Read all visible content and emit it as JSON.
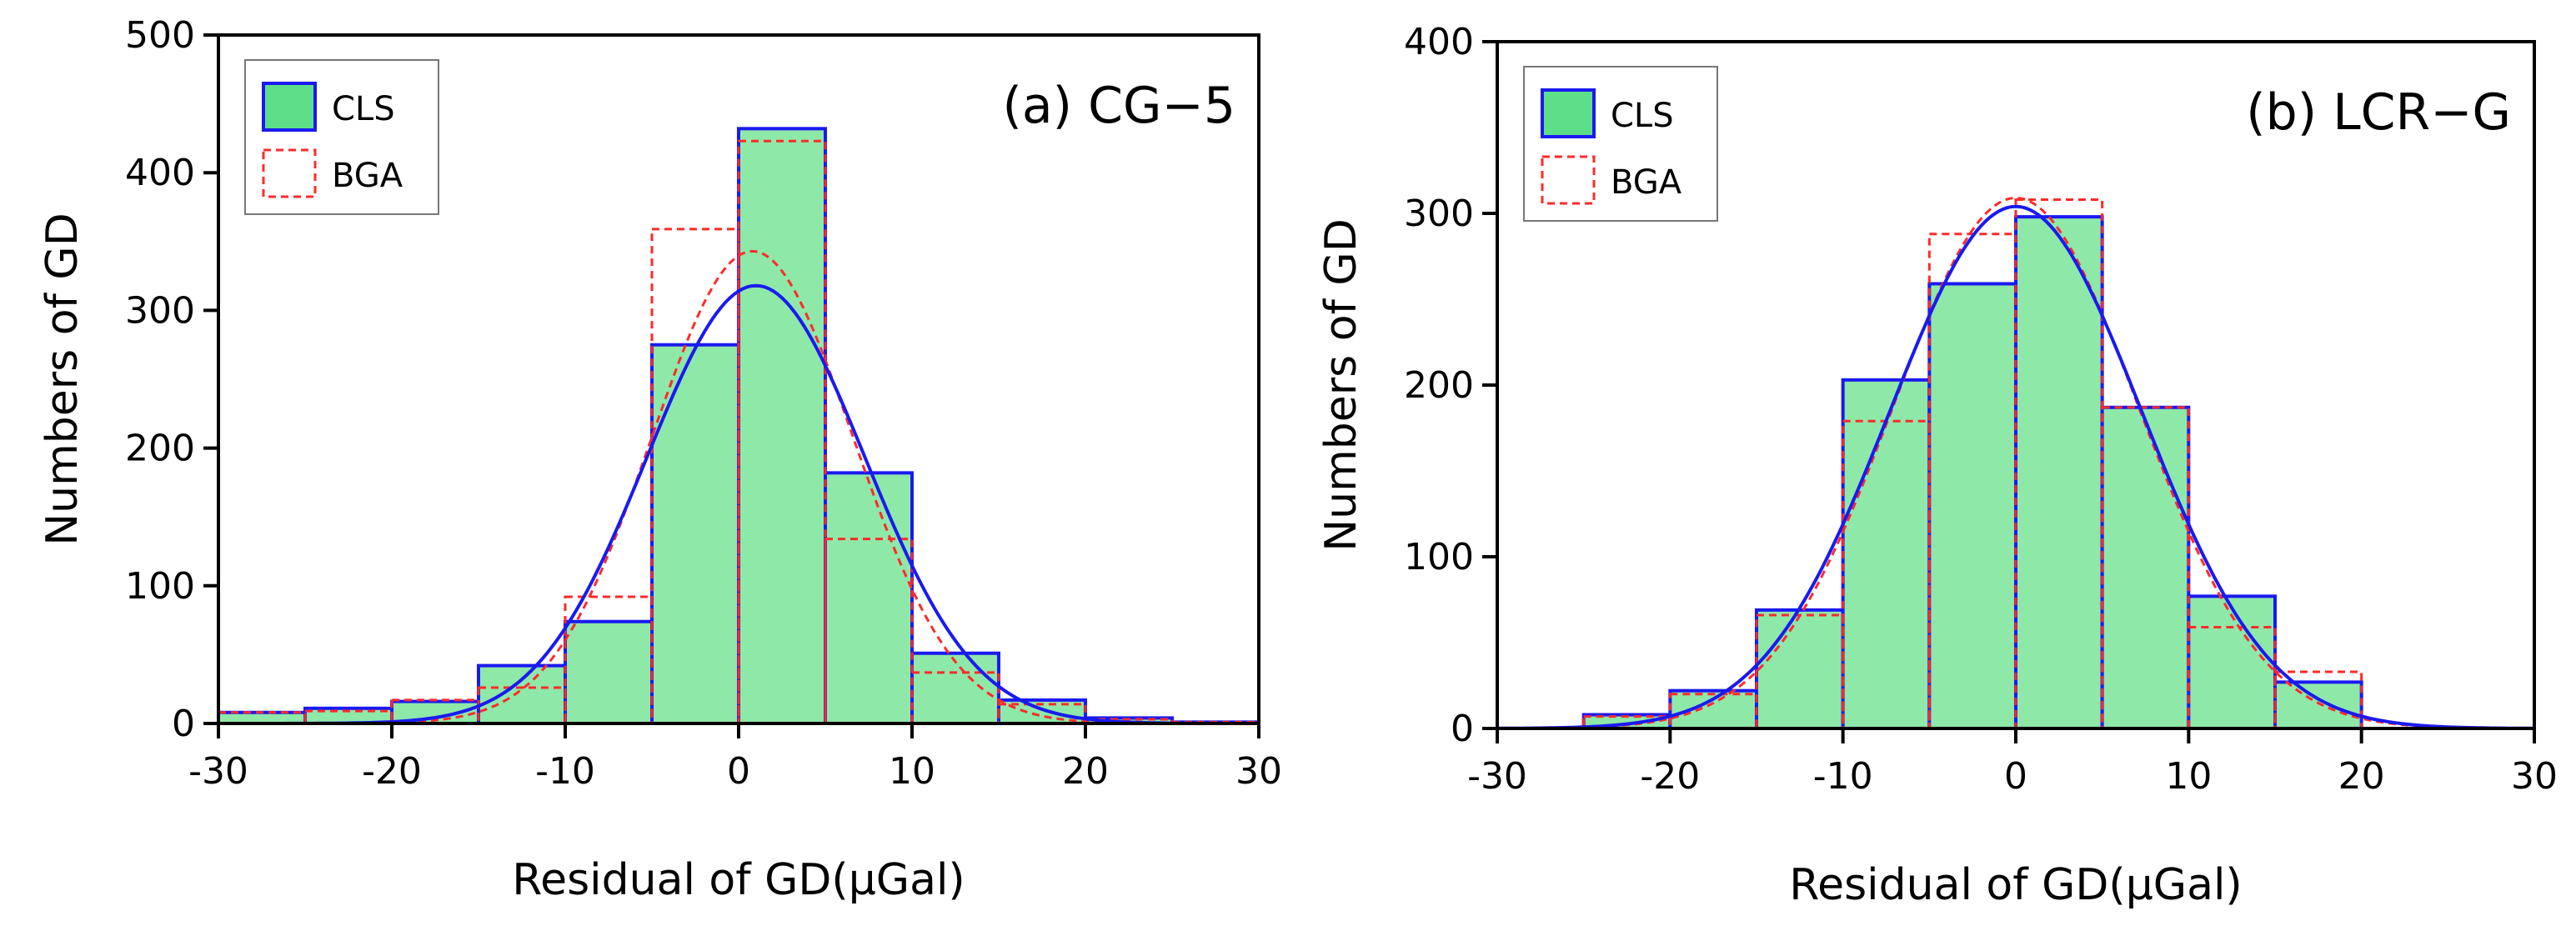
{
  "chart_data": [
    {
      "type": "bar",
      "title": "(a)  CG−5",
      "xlabel": "Residual of GD(μGal)",
      "ylabel": "Numbers of GD",
      "xlim": [
        -30,
        30
      ],
      "ylim": [
        0,
        500
      ],
      "xticks": [
        "-30",
        "-20",
        "-10",
        "0",
        "10",
        "20",
        "30"
      ],
      "yticks": [
        "0",
        "100",
        "200",
        "300",
        "400",
        "500"
      ],
      "bin_edges": [
        -30,
        -25,
        -20,
        -15,
        -10,
        -5,
        0,
        5,
        10,
        15,
        20,
        25,
        30
      ],
      "legend": {
        "position": "top-left",
        "entries": [
          "CLS",
          "BGA"
        ]
      },
      "series": [
        {
          "name": "CLS",
          "values": [
            8,
            11,
            16,
            42,
            74,
            275,
            432,
            182,
            51,
            17,
            4,
            1
          ],
          "fit": {
            "mu": 1,
            "sigma": 6.3,
            "peak": 318
          }
        },
        {
          "name": "BGA",
          "values": [
            8,
            9,
            17,
            26,
            92,
            359,
            423,
            134,
            37,
            14,
            3,
            1
          ],
          "fit": {
            "mu": 0.8,
            "sigma": 5.8,
            "peak": 343
          }
        }
      ]
    },
    {
      "type": "bar",
      "title": "(b)  LCR−G",
      "xlabel": "Residual of GD(μGal)",
      "ylabel": "Numbers of GD",
      "xlim": [
        -30,
        30
      ],
      "ylim": [
        0,
        400
      ],
      "xticks": [
        "-30",
        "-20",
        "-10",
        "0",
        "10",
        "20",
        "30"
      ],
      "yticks": [
        "0",
        "100",
        "200",
        "300",
        "400"
      ],
      "bin_edges": [
        -30,
        -25,
        -20,
        -15,
        -10,
        -5,
        0,
        5,
        10,
        15,
        20,
        25,
        30
      ],
      "legend": {
        "position": "top-left",
        "entries": [
          "CLS",
          "BGA"
        ]
      },
      "series": [
        {
          "name": "CLS",
          "values": [
            0,
            8,
            22,
            69,
            203,
            259,
            298,
            187,
            77,
            27,
            0,
            0
          ],
          "fit": {
            "mu": 0,
            "sigma": 7.3,
            "peak": 304
          }
        },
        {
          "name": "BGA",
          "values": [
            0,
            7,
            20,
            66,
            179,
            288,
            308,
            187,
            59,
            33,
            0,
            0
          ],
          "fit": {
            "mu": 0,
            "sigma": 7.1,
            "peak": 309
          }
        }
      ]
    }
  ],
  "colors": {
    "cls_fill": "#8ee8a8",
    "cls_edge": "#1a1af0",
    "legend_cls_fill": "#5ddf8a",
    "bga_line": "#ff2a2a",
    "axis": "#000000"
  }
}
